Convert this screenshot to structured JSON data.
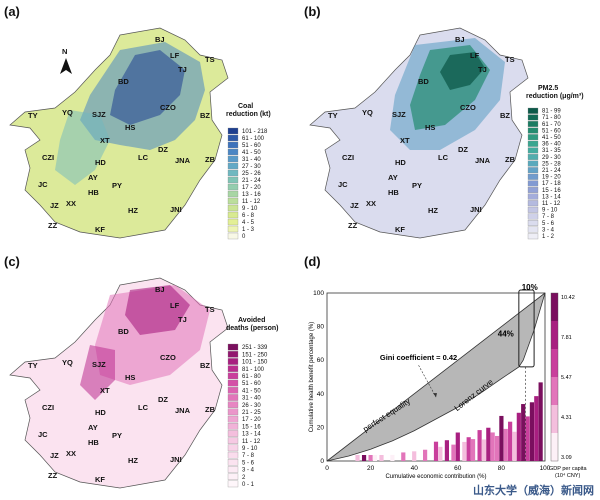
{
  "panels": {
    "a": {
      "label": "(a)",
      "north": "N",
      "legend_title_1": "Coal",
      "legend_title_2": "reduction (kt)",
      "legend": [
        {
          "label": "101 - 218",
          "color": "#1f3f8f"
        },
        {
          "label": "61 - 100",
          "color": "#2f5aa8"
        },
        {
          "label": "51 - 60",
          "color": "#3d72bb"
        },
        {
          "label": "41 - 50",
          "color": "#4b86c4"
        },
        {
          "label": "31 - 40",
          "color": "#5a9bc9"
        },
        {
          "label": "27 - 30",
          "color": "#63a9c6"
        },
        {
          "label": "25 - 26",
          "color": "#6fb8c0"
        },
        {
          "label": "21 - 24",
          "color": "#80c4b6"
        },
        {
          "label": "17 - 20",
          "color": "#93cdae"
        },
        {
          "label": "13 - 16",
          "color": "#a8d6a4"
        },
        {
          "label": "11 - 12",
          "color": "#bbde9c"
        },
        {
          "label": "9 - 10",
          "color": "#cbe494"
        },
        {
          "label": "6 - 8",
          "color": "#d8ea90"
        },
        {
          "label": "4 - 5",
          "color": "#e3ef95"
        },
        {
          "label": "1 - 3",
          "color": "#eef4b4"
        },
        {
          "label": "0",
          "color": "#f8f8e6"
        }
      ]
    },
    "b": {
      "label": "(b)",
      "legend_title_1": "PM2.5",
      "legend_title_2": "reduction (μg/m³)",
      "legend": [
        {
          "label": "81 - 99",
          "color": "#0d5a4a"
        },
        {
          "label": "71 - 80",
          "color": "#136b56"
        },
        {
          "label": "61 - 70",
          "color": "#1a7c62"
        },
        {
          "label": "51 - 60",
          "color": "#248c70"
        },
        {
          "label": "41 - 50",
          "color": "#2f9b80"
        },
        {
          "label": "36 - 40",
          "color": "#3aa690"
        },
        {
          "label": "31 - 35",
          "color": "#45aca0"
        },
        {
          "label": "29 - 30",
          "color": "#52aeae"
        },
        {
          "label": "25 - 28",
          "color": "#5aa9bc"
        },
        {
          "label": "21 - 24",
          "color": "#64a2c6"
        },
        {
          "label": "19 - 20",
          "color": "#729ccd"
        },
        {
          "label": "17 - 18",
          "color": "#829ad2"
        },
        {
          "label": "15 - 16",
          "color": "#93a2d6"
        },
        {
          "label": "13 - 14",
          "color": "#a4addb"
        },
        {
          "label": "11 - 12",
          "color": "#b4badf"
        },
        {
          "label": "9 - 10",
          "color": "#c3c6e4"
        },
        {
          "label": "7 - 8",
          "color": "#cfd1e9"
        },
        {
          "label": "5 - 6",
          "color": "#dadcee"
        },
        {
          "label": "3 - 4",
          "color": "#e4e5f2"
        },
        {
          "label": "1 - 2",
          "color": "#eeeef6"
        }
      ]
    },
    "c": {
      "label": "(c)",
      "legend_title_1": "Avoided",
      "legend_title_2": "deaths (person)",
      "legend": [
        {
          "label": "251 - 339",
          "color": "#7a0f5e"
        },
        {
          "label": "151 - 250",
          "color": "#92176f"
        },
        {
          "label": "101 - 150",
          "color": "#a81f80"
        },
        {
          "label": "81 - 100",
          "color": "#bb2d8f"
        },
        {
          "label": "61 - 80",
          "color": "#c93f9c"
        },
        {
          "label": "51 - 60",
          "color": "#d451a7"
        },
        {
          "label": "41 - 50",
          "color": "#dc63b1"
        },
        {
          "label": "31 - 40",
          "color": "#e275ba"
        },
        {
          "label": "26 - 30",
          "color": "#e786c2"
        },
        {
          "label": "21 - 25",
          "color": "#eb96ca"
        },
        {
          "label": "17 - 20",
          "color": "#eea5d1"
        },
        {
          "label": "15 - 16",
          "color": "#f1b2d8"
        },
        {
          "label": "13 - 14",
          "color": "#f4bedd"
        },
        {
          "label": "11 - 12",
          "color": "#f6c9e3"
        },
        {
          "label": "9 - 10",
          "color": "#f8d3e8"
        },
        {
          "label": "7 - 8",
          "color": "#fadced"
        },
        {
          "label": "5 - 6",
          "color": "#fbe3f0"
        },
        {
          "label": "3 - 4",
          "color": "#fceaf4"
        },
        {
          "label": "2",
          "color": "#fdf0f7"
        },
        {
          "label": "0 - 1",
          "color": "#fef6fa"
        }
      ]
    },
    "d": {
      "label": "(d)"
    }
  },
  "cities": [
    "BJ",
    "LF",
    "TS",
    "TJ",
    "BD",
    "TY",
    "YQ",
    "SJZ",
    "CZO",
    "HS",
    "BZ",
    "XT",
    "DZ",
    "CZI",
    "HD",
    "LC",
    "JNA",
    "ZB",
    "AY",
    "HB",
    "PY",
    "JC",
    "XX",
    "JZ",
    "HZ",
    "JNI",
    "ZZ",
    "KF"
  ],
  "chart_data": {
    "type": "line",
    "xlabel": "Cumulative economic contribution (%)",
    "ylabel": "Cumulative health benefit percentage (%)",
    "xlim": [
      0,
      100
    ],
    "ylim": [
      0,
      100
    ],
    "x_ticks": [
      "0",
      "20",
      "40",
      "60",
      "80",
      "100"
    ],
    "y_ticks": [
      "0",
      "20",
      "40",
      "60",
      "80",
      "100"
    ],
    "series": [
      {
        "name": "perfect equality",
        "x": [
          0,
          100
        ],
        "y": [
          0,
          100
        ]
      },
      {
        "name": "Lorenz curve",
        "x": [
          0,
          10,
          20,
          30,
          40,
          50,
          60,
          70,
          80,
          88,
          90,
          95,
          100
        ],
        "y": [
          0,
          3,
          7,
          12,
          18,
          25,
          32,
          40,
          49,
          56,
          60,
          78,
          100
        ]
      }
    ],
    "annotations": {
      "gini": "Gini coefficient = 0.42",
      "pct_top": "10%",
      "pct_side": "44%"
    },
    "colorbar": {
      "label_1": "GDP per capita",
      "label_2": "(10⁴ CNY)",
      "ticks": [
        "10.42",
        "7.81",
        "5.47",
        "4.31",
        "3.09"
      ],
      "colors": [
        "#7a0f5e",
        "#a81f80",
        "#c93f9c",
        "#e275ba",
        "#f4bedd",
        "#fdf0f7"
      ]
    },
    "bars": [
      {
        "x": 14,
        "v": 0.2
      },
      {
        "x": 17,
        "v": 0.9
      },
      {
        "x": 20,
        "v": 0.4
      },
      {
        "x": 22,
        "v": 0.1
      },
      {
        "x": 25,
        "v": 0.3
      },
      {
        "x": 30,
        "v": 0.15
      },
      {
        "x": 35,
        "v": 0.5
      },
      {
        "x": 40,
        "v": 0.2
      },
      {
        "x": 45,
        "v": 0.35
      },
      {
        "x": 50,
        "v": 0.6
      },
      {
        "x": 52,
        "v": 0.25
      },
      {
        "x": 55,
        "v": 0.7
      },
      {
        "x": 58,
        "v": 0.4
      },
      {
        "x": 60,
        "v": 0.8
      },
      {
        "x": 63,
        "v": 0.3
      },
      {
        "x": 65,
        "v": 0.55
      },
      {
        "x": 67,
        "v": 0.45
      },
      {
        "x": 70,
        "v": 0.6
      },
      {
        "x": 72,
        "v": 0.2
      },
      {
        "x": 74,
        "v": 0.7
      },
      {
        "x": 76,
        "v": 0.5
      },
      {
        "x": 78,
        "v": 0.35
      },
      {
        "x": 80,
        "v": 0.85
      },
      {
        "x": 82,
        "v": 0.4
      },
      {
        "x": 84,
        "v": 0.65
      },
      {
        "x": 86,
        "v": 0.3
      },
      {
        "x": 88,
        "v": 0.75
      },
      {
        "x": 90,
        "v": 0.9
      },
      {
        "x": 92,
        "v": 0.55
      },
      {
        "x": 94,
        "v": 0.95
      },
      {
        "x": 96,
        "v": 0.7
      },
      {
        "x": 98,
        "v": 1.0
      }
    ]
  },
  "watermark": "山东大学（威海）新闻网"
}
